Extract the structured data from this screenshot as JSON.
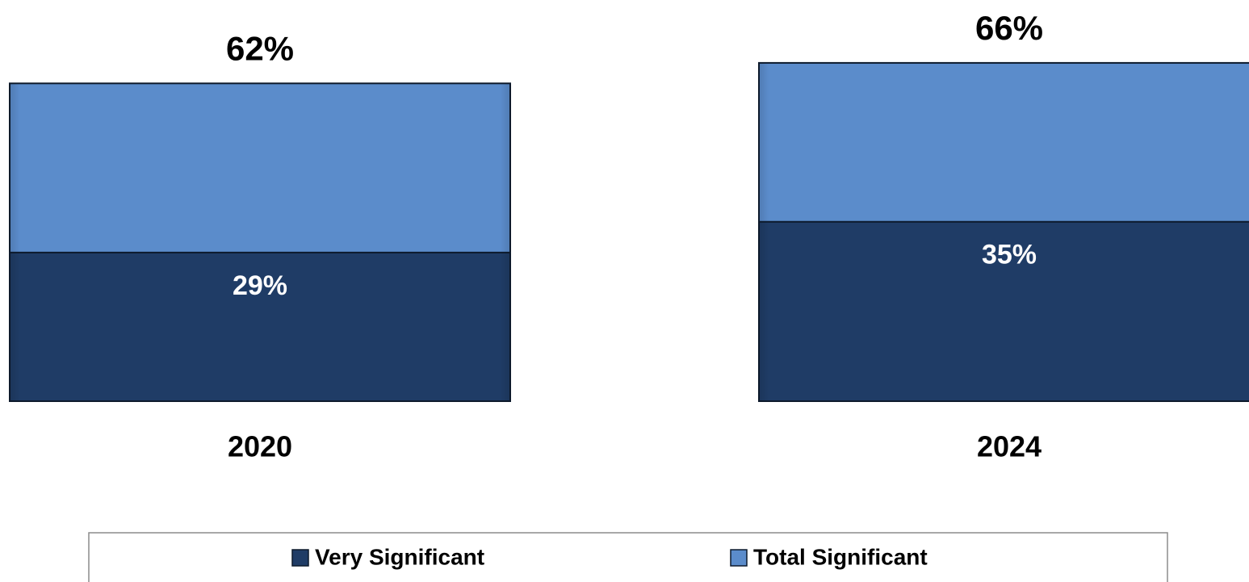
{
  "chart_data": {
    "type": "bar",
    "overlap": true,
    "categories": [
      "2020",
      "2024"
    ],
    "series": [
      {
        "name": "Total Significant",
        "color": "#5b8ccb",
        "values": [
          62,
          66
        ],
        "value_labels": [
          "62%",
          "66%"
        ]
      },
      {
        "name": "Very Significant",
        "color": "#1f3c66",
        "values": [
          29,
          35
        ],
        "value_labels": [
          "29%",
          "35%"
        ]
      }
    ],
    "legend": "bottom"
  }
}
